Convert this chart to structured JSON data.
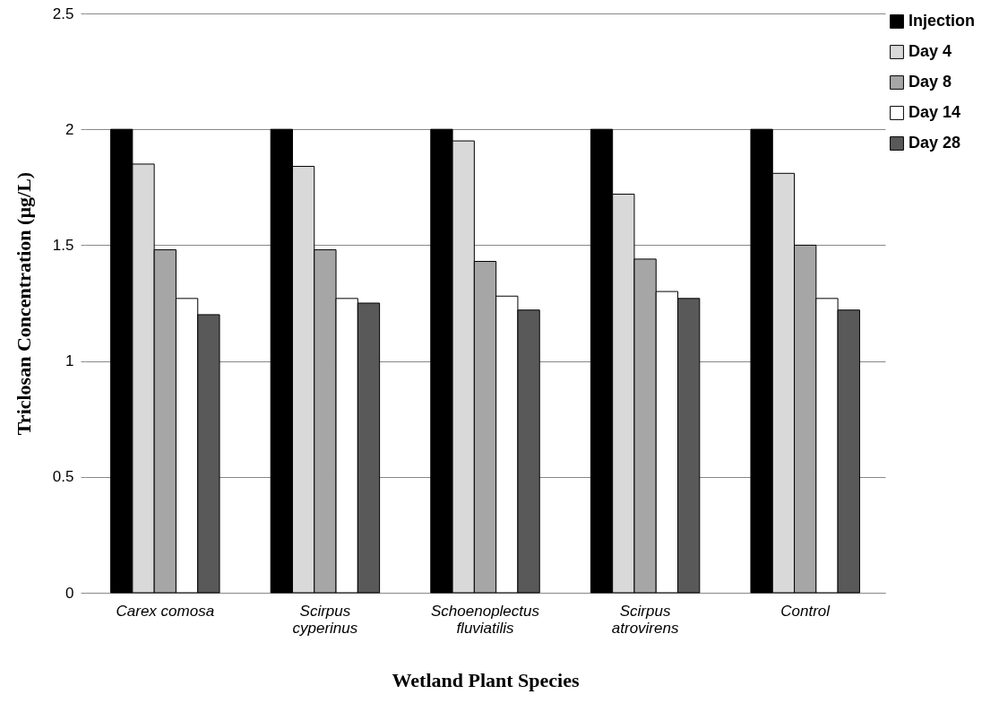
{
  "chart_data": {
    "type": "bar",
    "xlabel": "Wetland Plant Species",
    "ylabel": "Triclosan Concentration (µg/L)",
    "categories": [
      "Carex comosa",
      "Scirpus cyperinus",
      "Schoenoplectus fluviatilis",
      "Scirpus atrovirens",
      "Control"
    ],
    "series": [
      {
        "name": "Injection",
        "color": "#000000",
        "values": [
          2,
          2,
          2,
          2,
          2
        ]
      },
      {
        "name": "Day 4",
        "color": "#d9d9d9",
        "values": [
          1.85,
          1.84,
          1.95,
          1.72,
          1.81
        ]
      },
      {
        "name": "Day 8",
        "color": "#a6a6a6",
        "values": [
          1.48,
          1.48,
          1.43,
          1.44,
          1.5
        ]
      },
      {
        "name": "Day  14",
        "color": "#ffffff",
        "values": [
          1.27,
          1.27,
          1.28,
          1.3,
          1.27
        ]
      },
      {
        "name": "Day 28",
        "color": "#595959",
        "values": [
          1.2,
          1.25,
          1.22,
          1.27,
          1.22
        ]
      }
    ],
    "ylim": [
      0,
      2.5
    ],
    "yticks": [
      0,
      0.5,
      1,
      1.5,
      2,
      2.5
    ],
    "grid": "y",
    "legend": "right"
  }
}
